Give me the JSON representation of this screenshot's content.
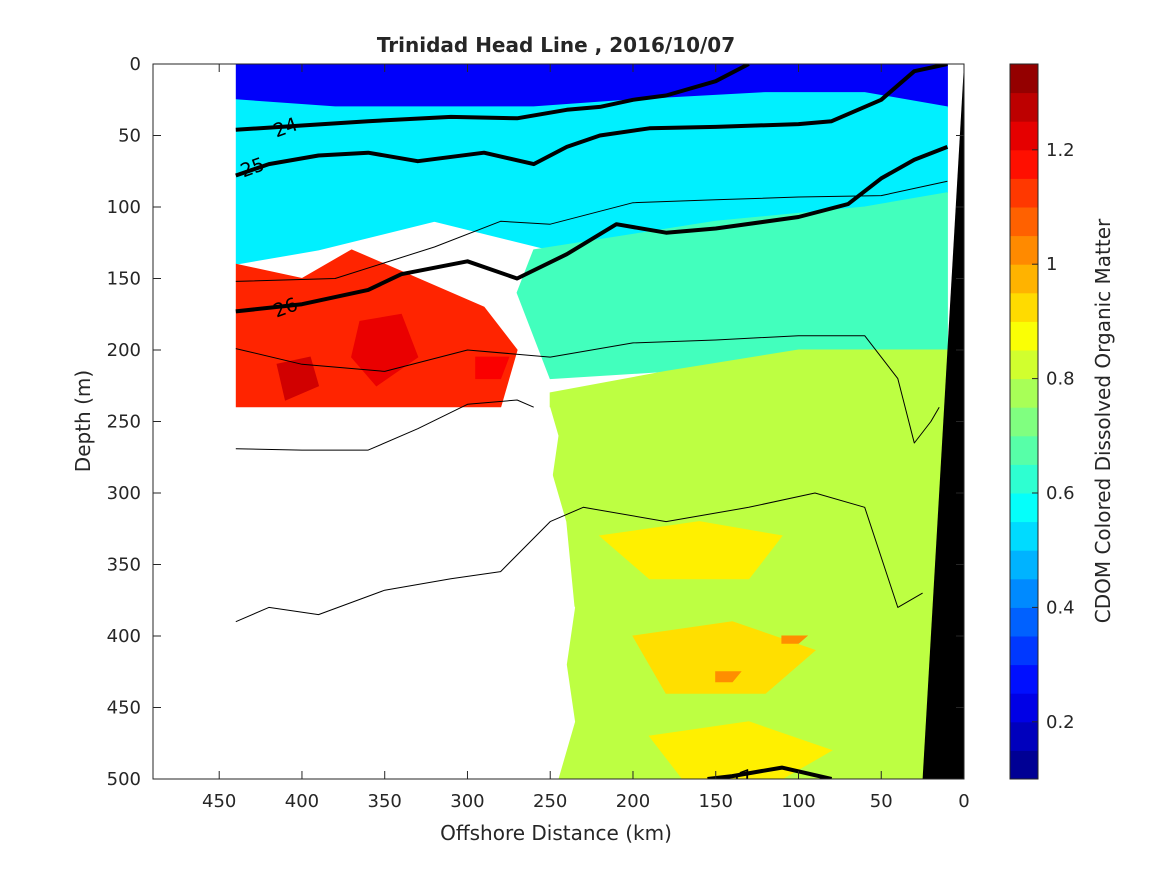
{
  "chart_data": {
    "type": "heatmap",
    "title": "Trinidad Head Line , 2016/10/07",
    "xlabel": "Offshore Distance (km)",
    "ylabel": "Depth (m)",
    "colorbar_label": "CDOM Colored Dissolved Organic Matter",
    "xlim": [
      490,
      0
    ],
    "ylim": [
      500,
      0
    ],
    "x_reversed": true,
    "y_reversed": true,
    "clim": [
      0.1,
      1.35
    ],
    "colormap": "jet",
    "xticks": [
      {
        "value": 450,
        "label": "450"
      },
      {
        "value": 400,
        "label": "400"
      },
      {
        "value": 350,
        "label": "350"
      },
      {
        "value": 300,
        "label": "300"
      },
      {
        "value": 250,
        "label": "250"
      },
      {
        "value": 200,
        "label": "200"
      },
      {
        "value": 150,
        "label": "150"
      },
      {
        "value": 100,
        "label": "100"
      },
      {
        "value": 50,
        "label": "50"
      },
      {
        "value": 0,
        "label": "0"
      }
    ],
    "yticks": [
      {
        "value": 0,
        "label": "0"
      },
      {
        "value": 50,
        "label": "50"
      },
      {
        "value": 100,
        "label": "100"
      },
      {
        "value": 150,
        "label": "150"
      },
      {
        "value": 200,
        "label": "200"
      },
      {
        "value": 250,
        "label": "250"
      },
      {
        "value": 300,
        "label": "300"
      },
      {
        "value": 350,
        "label": "350"
      },
      {
        "value": 400,
        "label": "400"
      },
      {
        "value": 450,
        "label": "450"
      },
      {
        "value": 500,
        "label": "500"
      }
    ],
    "colorbar_ticks": [
      {
        "value": 0.2,
        "label": "0.2"
      },
      {
        "value": 0.4,
        "label": "0.4"
      },
      {
        "value": 0.6,
        "label": "0.6"
      },
      {
        "value": 0.8,
        "label": "0.8"
      },
      {
        "value": 1.0,
        "label": "1"
      },
      {
        "value": 1.2,
        "label": "1.2"
      }
    ],
    "regions": [
      {
        "name": "surface-low",
        "value": 0.25,
        "points": [
          [
            440,
            0
          ],
          [
            10,
            0
          ],
          [
            10,
            30
          ],
          [
            60,
            20
          ],
          [
            120,
            20
          ],
          [
            200,
            25
          ],
          [
            260,
            30
          ],
          [
            320,
            30
          ],
          [
            380,
            30
          ],
          [
            440,
            25
          ]
        ]
      },
      {
        "name": "upper-cyan",
        "value": 0.55,
        "points": [
          [
            440,
            25
          ],
          [
            380,
            30
          ],
          [
            320,
            30
          ],
          [
            260,
            30
          ],
          [
            200,
            25
          ],
          [
            120,
            20
          ],
          [
            60,
            20
          ],
          [
            10,
            30
          ],
          [
            10,
            90
          ],
          [
            60,
            100
          ],
          [
            150,
            110
          ],
          [
            250,
            130
          ],
          [
            320,
            110
          ],
          [
            390,
            130
          ],
          [
            440,
            140
          ]
        ]
      },
      {
        "name": "mid-cyan",
        "value": 0.65,
        "points": [
          [
            260,
            130
          ],
          [
            150,
            110
          ],
          [
            60,
            100
          ],
          [
            10,
            90
          ],
          [
            10,
            200
          ],
          [
            100,
            200
          ],
          [
            180,
            215
          ],
          [
            250,
            220
          ],
          [
            270,
            160
          ]
        ]
      },
      {
        "name": "warm-patch",
        "value": 1.15,
        "points": [
          [
            440,
            140
          ],
          [
            400,
            150
          ],
          [
            370,
            130
          ],
          [
            330,
            150
          ],
          [
            290,
            170
          ],
          [
            270,
            200
          ],
          [
            280,
            240
          ],
          [
            300,
            245
          ],
          [
            340,
            260
          ],
          [
            375,
            270
          ],
          [
            400,
            240
          ],
          [
            440,
            240
          ]
        ]
      },
      {
        "name": "hot-core-1",
        "value": 1.25,
        "points": [
          [
            415,
            210
          ],
          [
            395,
            205
          ],
          [
            390,
            225
          ],
          [
            410,
            235
          ]
        ]
      },
      {
        "name": "hot-core-2",
        "value": 1.22,
        "points": [
          [
            365,
            180
          ],
          [
            340,
            175
          ],
          [
            330,
            205
          ],
          [
            355,
            225
          ],
          [
            370,
            205
          ]
        ]
      },
      {
        "name": "hot-core-3",
        "value": 1.25,
        "points": [
          [
            350,
            255
          ],
          [
            330,
            255
          ],
          [
            340,
            265
          ],
          [
            355,
            265
          ]
        ]
      },
      {
        "name": "hot-core-4",
        "value": 1.2,
        "points": [
          [
            295,
            205
          ],
          [
            275,
            205
          ],
          [
            280,
            220
          ],
          [
            295,
            220
          ]
        ]
      },
      {
        "name": "deep-green",
        "value": 0.8,
        "points": [
          [
            250,
            230
          ],
          [
            180,
            215
          ],
          [
            100,
            200
          ],
          [
            10,
            200
          ],
          [
            25,
            500
          ],
          [
            250,
            500
          ],
          [
            245,
            440
          ],
          [
            235,
            380
          ],
          [
            240,
            320
          ],
          [
            250,
            280
          ]
        ]
      },
      {
        "name": "deep-yellow-1",
        "value": 0.9,
        "points": [
          [
            220,
            330
          ],
          [
            160,
            320
          ],
          [
            110,
            330
          ],
          [
            130,
            360
          ],
          [
            190,
            360
          ]
        ]
      },
      {
        "name": "deep-yellow-2",
        "value": 0.92,
        "points": [
          [
            200,
            400
          ],
          [
            140,
            390
          ],
          [
            90,
            410
          ],
          [
            120,
            440
          ],
          [
            180,
            440
          ]
        ]
      },
      {
        "name": "deep-yellow-3",
        "value": 0.9,
        "points": [
          [
            190,
            470
          ],
          [
            130,
            460
          ],
          [
            80,
            480
          ],
          [
            110,
            500
          ],
          [
            170,
            500
          ]
        ]
      },
      {
        "name": "deep-orange-1",
        "value": 1.02,
        "points": [
          [
            110,
            400
          ],
          [
            95,
            400
          ],
          [
            100,
            405
          ],
          [
            110,
            405
          ]
        ]
      },
      {
        "name": "deep-orange-2",
        "value": 1.02,
        "points": [
          [
            150,
            425
          ],
          [
            135,
            425
          ],
          [
            140,
            432
          ],
          [
            150,
            432
          ]
        ]
      }
    ],
    "contours": [
      {
        "level": 24,
        "thick": true,
        "label": "24",
        "label_at": [
          410,
          44
        ],
        "points": [
          [
            440,
            46
          ],
          [
            400,
            43
          ],
          [
            360,
            40
          ],
          [
            310,
            37
          ],
          [
            270,
            38
          ],
          [
            240,
            32
          ],
          [
            220,
            30
          ],
          [
            200,
            25
          ],
          [
            180,
            22
          ],
          [
            150,
            12
          ],
          [
            130,
            0
          ]
        ]
      },
      {
        "level": 25,
        "thick": true,
        "label": "25",
        "label_at": [
          430,
          72
        ],
        "points": [
          [
            440,
            78
          ],
          [
            420,
            70
          ],
          [
            390,
            64
          ],
          [
            360,
            62
          ],
          [
            330,
            68
          ],
          [
            290,
            62
          ],
          [
            260,
            70
          ],
          [
            240,
            58
          ],
          [
            220,
            50
          ],
          [
            190,
            45
          ],
          [
            150,
            44
          ],
          [
            100,
            42
          ],
          [
            80,
            40
          ],
          [
            50,
            25
          ],
          [
            30,
            5
          ],
          [
            10,
            0
          ]
        ]
      },
      {
        "level": 26,
        "thick": true,
        "label": "26",
        "label_at": [
          410,
          170
        ],
        "points": [
          [
            440,
            173
          ],
          [
            400,
            168
          ],
          [
            360,
            158
          ],
          [
            340,
            147
          ],
          [
            300,
            138
          ],
          [
            270,
            150
          ],
          [
            240,
            133
          ],
          [
            210,
            112
          ],
          [
            180,
            118
          ],
          [
            150,
            115
          ],
          [
            100,
            107
          ],
          [
            70,
            98
          ],
          [
            50,
            80
          ],
          [
            30,
            67
          ],
          [
            10,
            58
          ]
        ]
      },
      {
        "level": 26.2,
        "thick": false,
        "label": null,
        "label_at": null,
        "points": [
          [
            440,
            152
          ],
          [
            380,
            150
          ],
          [
            320,
            128
          ],
          [
            280,
            110
          ],
          [
            250,
            112
          ],
          [
            200,
            97
          ],
          [
            150,
            95
          ],
          [
            100,
            93
          ],
          [
            50,
            92
          ],
          [
            10,
            82
          ]
        ]
      },
      {
        "level": 26.5,
        "thick": false,
        "label": null,
        "label_at": null,
        "points": [
          [
            440,
            199
          ],
          [
            400,
            210
          ],
          [
            350,
            215
          ],
          [
            300,
            200
          ],
          [
            250,
            205
          ],
          [
            200,
            195
          ],
          [
            150,
            193
          ],
          [
            100,
            190
          ],
          [
            60,
            190
          ],
          [
            40,
            220
          ],
          [
            30,
            265
          ],
          [
            20,
            250
          ],
          [
            15,
            240
          ]
        ]
      },
      {
        "level": 26.8,
        "thick": false,
        "label": null,
        "label_at": null,
        "points": [
          [
            440,
            269
          ],
          [
            400,
            270
          ],
          [
            360,
            270
          ],
          [
            330,
            255
          ],
          [
            300,
            238
          ],
          [
            270,
            235
          ],
          [
            260,
            240
          ]
        ]
      },
      {
        "level": 26.9,
        "thick": false,
        "label": null,
        "label_at": null,
        "points": [
          [
            440,
            390
          ],
          [
            420,
            380
          ],
          [
            390,
            385
          ],
          [
            350,
            368
          ],
          [
            310,
            360
          ],
          [
            280,
            355
          ],
          [
            250,
            320
          ],
          [
            230,
            310
          ],
          [
            180,
            320
          ],
          [
            130,
            310
          ],
          [
            90,
            300
          ],
          [
            60,
            310
          ],
          [
            40,
            380
          ],
          [
            25,
            370
          ]
        ]
      },
      {
        "level": 27,
        "thick": true,
        "label": "27",
        "label_at": [
          135,
          500
        ],
        "points": [
          [
            155,
            500
          ],
          [
            140,
            498
          ],
          [
            110,
            492
          ],
          [
            80,
            500
          ]
        ]
      }
    ],
    "land_mask": {
      "value": "bottom/land (black)",
      "points": [
        [
          0,
          0
        ],
        [
          0,
          500
        ],
        [
          25,
          500
        ]
      ]
    },
    "blank_regions": [
      {
        "points": [
          [
            490,
            0
          ],
          [
            440,
            0
          ],
          [
            440,
            240
          ],
          [
            250,
            240
          ],
          [
            245,
            260
          ],
          [
            250,
            300
          ],
          [
            240,
            330
          ],
          [
            245,
            360
          ],
          [
            235,
            380
          ],
          [
            240,
            420
          ],
          [
            235,
            460
          ],
          [
            245,
            500
          ],
          [
            490,
            500
          ]
        ]
      }
    ]
  }
}
